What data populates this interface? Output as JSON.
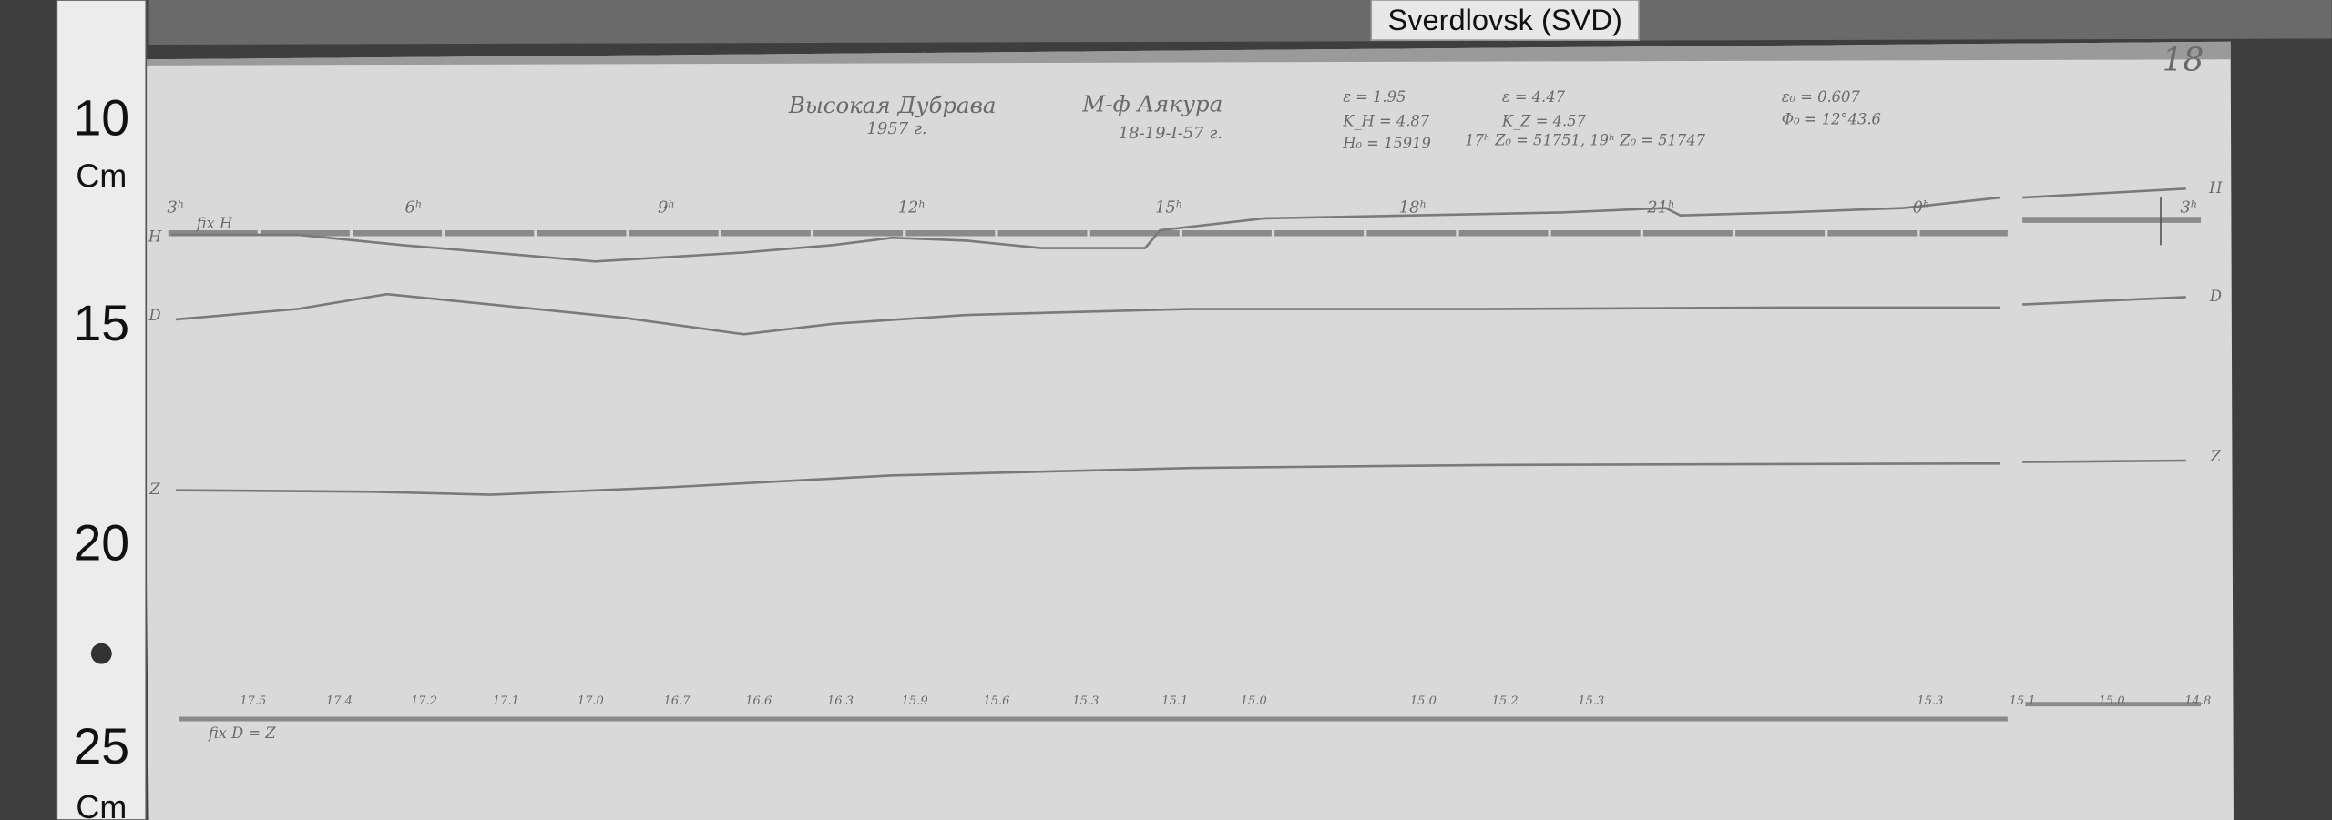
{
  "overlay": {
    "station": "Sverdlovsk (SVD)"
  },
  "ruler": {
    "labels": [
      "10",
      "Cm",
      "15",
      "20",
      "25",
      "Cm"
    ]
  },
  "sheet": {
    "page_number": "18",
    "title": "Высокая Дубрава",
    "year": "1957 г.",
    "observer": "М-ф Аякура",
    "dates": "18-19-I-57 г.",
    "params": [
      "ε = 1.95",
      "K_H = 4.87",
      "H₀ = 15919",
      "ε = 4.47",
      "K_Z = 4.57",
      "17ʰ Z₀ = 51751, 19ʰ Z₀ = 51747",
      "ε₀ = 0.607",
      "Φ₀ = 12°43.6"
    ],
    "hours": [
      "3ʰ",
      "6ʰ",
      "9ʰ",
      "12ʰ",
      "15ʰ",
      "18ʰ",
      "21ʰ",
      "0ʰ",
      "3ʰ"
    ],
    "fix_h": "fix H",
    "fix_dz": "fix D = Z",
    "trace_labels": [
      "H",
      "D",
      "Z"
    ],
    "bottom_values": [
      "17.5",
      "17.4",
      "17.2",
      "17.1",
      "17.0",
      "16.7",
      "16.6",
      "16.3",
      "15.9",
      "15.6",
      "15.3",
      "15.1",
      "15.0",
      "15.0",
      "15.2",
      "15.3",
      "15.3",
      "15.1",
      "15.0",
      "14.8"
    ]
  }
}
